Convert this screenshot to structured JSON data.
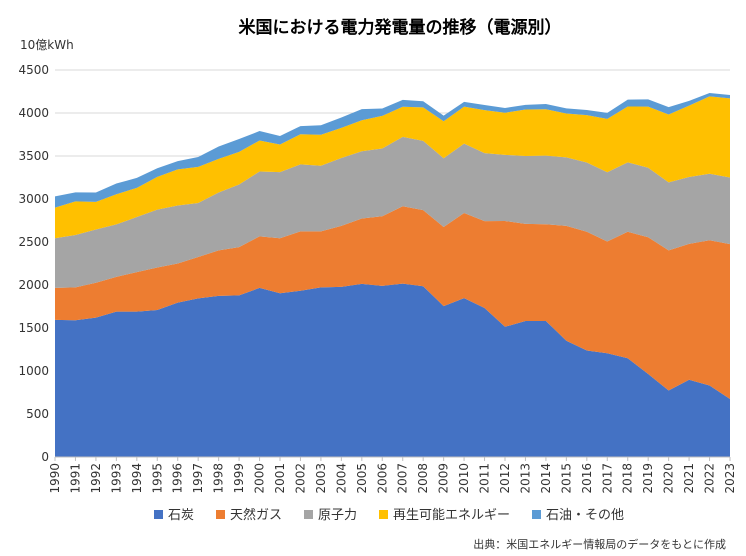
{
  "chart_data": {
    "type": "area",
    "stacked": true,
    "title": "米国における電力発電量の推移（電源別）",
    "ylabel": "10億kWh",
    "xlabel": "",
    "ylim": [
      0,
      4500
    ],
    "yticks": [
      0,
      500,
      1000,
      1500,
      2000,
      2500,
      3000,
      3500,
      4000,
      4500
    ],
    "grid": true,
    "legend_position": "bottom",
    "source": "出典：米国エネルギー情報局のデータをもとに作成",
    "x": [
      "1990",
      "1991",
      "1992",
      "1993",
      "1994",
      "1995",
      "1996",
      "1997",
      "1998",
      "1999",
      "2000",
      "2001",
      "2002",
      "2003",
      "2004",
      "2005",
      "2006",
      "2007",
      "2008",
      "2009",
      "2010",
      "2011",
      "2012",
      "2013",
      "2014",
      "2015",
      "2016",
      "2017",
      "2018",
      "2019",
      "2020",
      "2021",
      "2022",
      "2023"
    ],
    "series": [
      {
        "name": "石炭",
        "color": "#4472C4",
        "values": [
          1594,
          1590,
          1621,
          1690,
          1690,
          1709,
          1795,
          1845,
          1873,
          1880,
          1966,
          1904,
          1933,
          1973,
          1978,
          2013,
          1990,
          2016,
          1985,
          1755,
          1847,
          1733,
          1514,
          1581,
          1582,
          1352,
          1239,
          1206,
          1149,
          965,
          773,
          898,
          831,
          675
        ]
      },
      {
        "name": "天然ガス",
        "color": "#ED7D31",
        "values": [
          372,
          382,
          405,
          405,
          460,
          495,
          455,
          480,
          530,
          560,
          600,
          640,
          690,
          650,
          710,
          760,
          810,
          900,
          885,
          920,
          990,
          1010,
          1230,
          1130,
          1125,
          1335,
          1380,
          1300,
          1470,
          1590,
          1630,
          1580,
          1690,
          1800
        ]
      },
      {
        "name": "原子力",
        "color": "#A5A5A5",
        "values": [
          577,
          610,
          620,
          610,
          640,
          673,
          675,
          628,
          673,
          728,
          754,
          769,
          780,
          764,
          789,
          782,
          787,
          806,
          806,
          799,
          807,
          790,
          769,
          789,
          797,
          797,
          806,
          805,
          807,
          809,
          790,
          778,
          772,
          775
        ]
      },
      {
        "name": "再生可能エネルギー",
        "color": "#FFC000",
        "values": [
          357,
          390,
          320,
          350,
          340,
          380,
          420,
          420,
          390,
          380,
          360,
          320,
          350,
          360,
          350,
          360,
          380,
          350,
          390,
          430,
          430,
          500,
          490,
          540,
          540,
          510,
          550,
          620,
          650,
          710,
          790,
          830,
          900,
          920
        ]
      },
      {
        "name": "石油・その他",
        "color": "#5B9BD5",
        "values": [
          130,
          105,
          110,
          125,
          115,
          100,
          95,
          115,
          145,
          150,
          110,
          100,
          95,
          110,
          120,
          130,
          85,
          80,
          70,
          65,
          55,
          60,
          55,
          55,
          60,
          60,
          60,
          70,
          80,
          85,
          85,
          55,
          40,
          40
        ]
      }
    ]
  }
}
